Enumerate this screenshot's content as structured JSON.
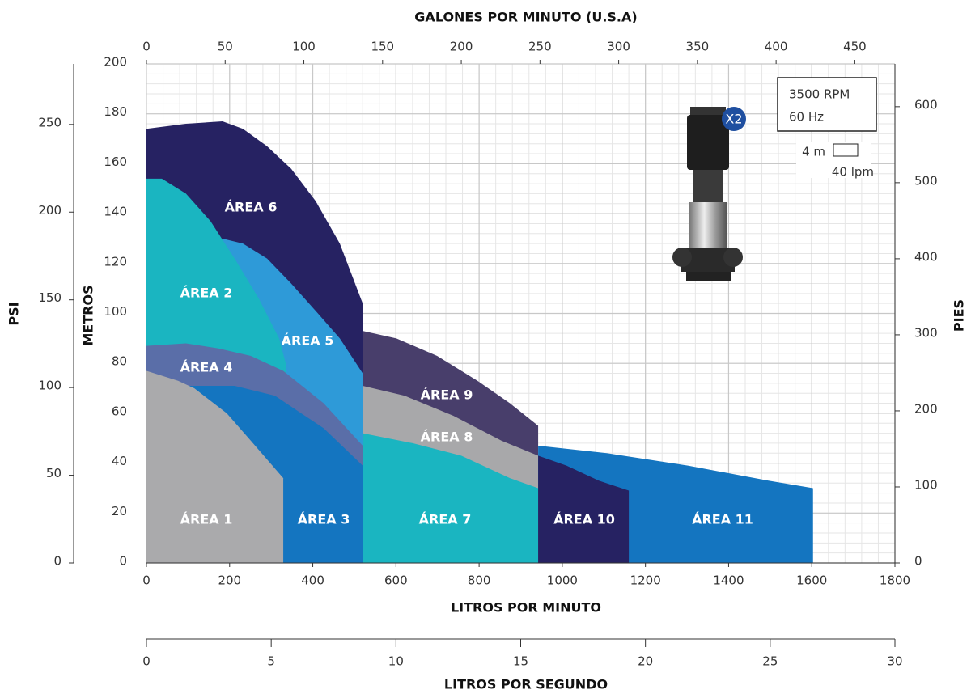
{
  "chart_data": {
    "type": "area",
    "xlabel": "LITROS POR MINUTO",
    "ylabel": "METROS",
    "xlim": [
      0,
      1800
    ],
    "xticks": [
      0,
      200,
      400,
      600,
      800,
      1000,
      1200,
      1400,
      1600,
      1800
    ],
    "ylim": [
      0,
      200
    ],
    "yticks": [
      0,
      20,
      40,
      60,
      80,
      100,
      120,
      140,
      160,
      180,
      200
    ],
    "x2label": "GALONES POR MINUTO (U.S.A)",
    "x2lim": [
      0,
      475.5
    ],
    "x2ticks": [
      0,
      50,
      100,
      150,
      200,
      250,
      300,
      350,
      400,
      450
    ],
    "x3label": "LITROS POR SEGUNDO",
    "x3lim": [
      0,
      30
    ],
    "x3ticks": [
      0,
      5,
      10,
      15,
      20,
      25,
      30
    ],
    "y2label": "PIES",
    "y2lim": [
      0,
      656.2
    ],
    "y2ticks": [
      0,
      100,
      200,
      300,
      400,
      500,
      600
    ],
    "y3label": "PSI",
    "y3lim": [
      0,
      284.5
    ],
    "y3ticks": [
      0,
      50,
      100,
      150,
      200,
      250
    ],
    "grid": true,
    "grid_cell": {
      "x": {
        "value": 40,
        "label": "40 lpm"
      },
      "y": {
        "value": 4,
        "label": "4 m"
      }
    },
    "speed": "3500 RPM",
    "frequency": "60 Hz",
    "pump_badge": "X2",
    "series": [
      {
        "name": "ÁREA 6",
        "color": "#262262",
        "x": [
          0,
          95,
          183,
          232,
          290,
          348,
          407,
          465,
          520
        ],
        "values": [
          174,
          176,
          177,
          174,
          167,
          158,
          145,
          128,
          104
        ]
      },
      {
        "name": "ÁREA 5",
        "color": "#2e9ad8",
        "x": [
          183,
          232,
          290,
          348,
          407,
          465,
          520
        ],
        "values": [
          130,
          128,
          122,
          112,
          101,
          90,
          76
        ]
      },
      {
        "name": "ÁREA 2",
        "color": "#1ab5c1",
        "x": [
          0,
          37,
          95,
          154,
          212,
          270,
          319,
          335
        ],
        "values": [
          154,
          154,
          148,
          137,
          122,
          106,
          90,
          80
        ]
      },
      {
        "name": "ÁREA 4",
        "color": "#5a6ea8",
        "x": [
          0,
          95,
          173,
          251,
          329,
          426,
          520
        ],
        "values": [
          87,
          88,
          86,
          83,
          77,
          64,
          47
        ]
      },
      {
        "name": "ÁREA 3",
        "color": "#1475c0",
        "x": [
          0,
          212,
          309,
          426,
          520
        ],
        "values": [
          71,
          71,
          67,
          54,
          39
        ]
      },
      {
        "name": "ÁREA 1",
        "color": "#aaaaac",
        "x": [
          0,
          76,
          115,
          193,
          251,
          329
        ],
        "values": [
          77,
          73,
          70,
          60,
          49,
          34
        ]
      },
      {
        "name": "ÁREA 9",
        "color": "#483e6b",
        "x": [
          520,
          601,
          699,
          796,
          874,
          942
        ],
        "values": [
          93,
          90,
          83,
          73,
          64,
          55
        ]
      },
      {
        "name": "ÁREA 8",
        "color": "#a8a8aa",
        "x": [
          520,
          621,
          738,
          854,
          942
        ],
        "values": [
          71,
          67,
          59,
          49,
          43
        ]
      },
      {
        "name": "ÁREA 7",
        "color": "#1ab5c1",
        "x": [
          520,
          640,
          757,
          874,
          942
        ],
        "values": [
          52,
          48,
          43,
          34,
          30
        ]
      },
      {
        "name": "ÁREA 11",
        "color": "#1475c0",
        "x": [
          942,
          1107,
          1302,
          1496,
          1603
        ],
        "values": [
          47,
          44,
          39,
          33,
          30
        ]
      },
      {
        "name": "ÁREA 10",
        "color": "#262262",
        "x": [
          942,
          1010,
          1088,
          1160
        ],
        "values": [
          43,
          39,
          33,
          29
        ]
      }
    ]
  }
}
